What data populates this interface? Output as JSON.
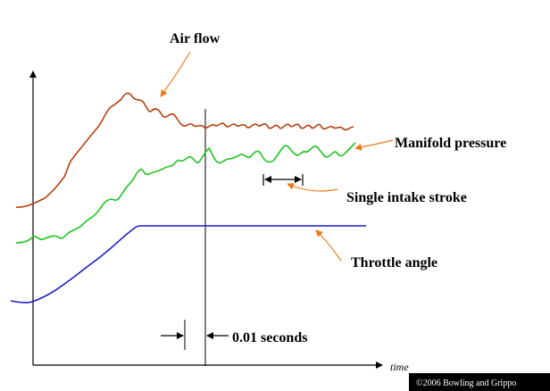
{
  "labels": {
    "air_flow": "Air flow",
    "manifold_pressure": "Manifold pressure",
    "single_intake_stroke": "Single intake stroke",
    "throttle_angle": "Throttle angle",
    "interval": "0.01 seconds",
    "time_axis": "time",
    "copyright": "©2006 Bowling and Grippo"
  },
  "colors": {
    "air_flow": "#b5400f",
    "manifold_pressure": "#22c422",
    "throttle_angle": "#1c1cc8",
    "callout_arrow": "#f07a1a",
    "axes": "#000000",
    "copyright_bg": "#000000"
  }
}
